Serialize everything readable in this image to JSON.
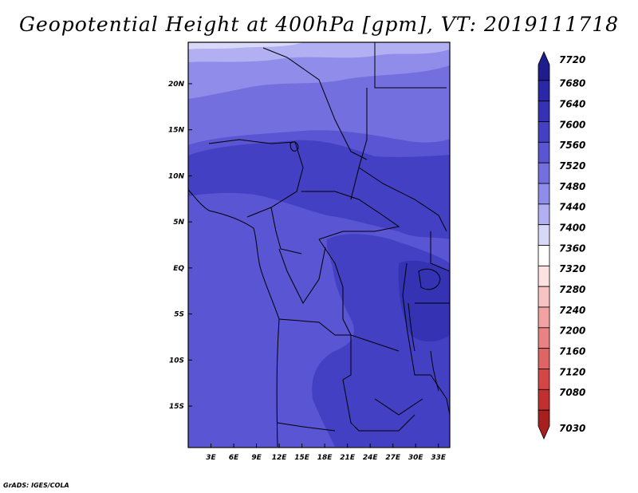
{
  "title": "Geopotential Height at 400hPa [gpm], VT: 2019111718",
  "footer": "GrADS: IGES/COLA",
  "map": {
    "region": "Central Africa",
    "lon_range": [
      0,
      34.5
    ],
    "lat_range": [
      -19.5,
      24.5
    ],
    "x_ticks": [
      {
        "lon": 3,
        "label": "3E"
      },
      {
        "lon": 6,
        "label": "6E"
      },
      {
        "lon": 9,
        "label": "9E"
      },
      {
        "lon": 12,
        "label": "12E"
      },
      {
        "lon": 15,
        "label": "15E"
      },
      {
        "lon": 18,
        "label": "18E"
      },
      {
        "lon": 21,
        "label": "21E"
      },
      {
        "lon": 24,
        "label": "24E"
      },
      {
        "lon": 27,
        "label": "27E"
      },
      {
        "lon": 30,
        "label": "30E"
      },
      {
        "lon": 33,
        "label": "33E"
      }
    ],
    "y_ticks": [
      {
        "lat": 20,
        "label": "20N"
      },
      {
        "lat": 15,
        "label": "15N"
      },
      {
        "lat": 10,
        "label": "10N"
      },
      {
        "lat": 5,
        "label": "5N"
      },
      {
        "lat": 0,
        "label": "EQ"
      },
      {
        "lat": -5,
        "label": "5S"
      },
      {
        "lat": -10,
        "label": "10S"
      },
      {
        "lat": -15,
        "label": "15S"
      }
    ]
  },
  "colorbar": {
    "levels": [
      {
        "label": "7720",
        "color": "#1f1c8e"
      },
      {
        "label": "7680",
        "color": "#2a28a6"
      },
      {
        "label": "7640",
        "color": "#3532b4"
      },
      {
        "label": "7600",
        "color": "#4440c4"
      },
      {
        "label": "7560",
        "color": "#5955d3"
      },
      {
        "label": "7520",
        "color": "#736fdf"
      },
      {
        "label": "7480",
        "color": "#8f8cea"
      },
      {
        "label": "7440",
        "color": "#b2b0f2"
      },
      {
        "label": "7400",
        "color": "#d8d8f8"
      },
      {
        "label": "7360",
        "color": "#ffffff"
      },
      {
        "label": "7320",
        "color": "#fde2e2"
      },
      {
        "label": "7280",
        "color": "#f8c3c3"
      },
      {
        "label": "7240",
        "color": "#f2a2a2"
      },
      {
        "label": "7200",
        "color": "#e98282"
      },
      {
        "label": "7160",
        "color": "#df6565"
      },
      {
        "label": "7120",
        "color": "#d44646"
      },
      {
        "label": "7080",
        "color": "#c22f2f"
      },
      {
        "label": "7030",
        "color": "#a81f1f"
      }
    ]
  },
  "colors": {
    "z7520": "#736fdf",
    "z7560": "#5955d3",
    "z7600": "#4440c4",
    "z7640": "#3532b4",
    "z7480": "#8f8cea",
    "z7440": "#b2b0f2"
  }
}
